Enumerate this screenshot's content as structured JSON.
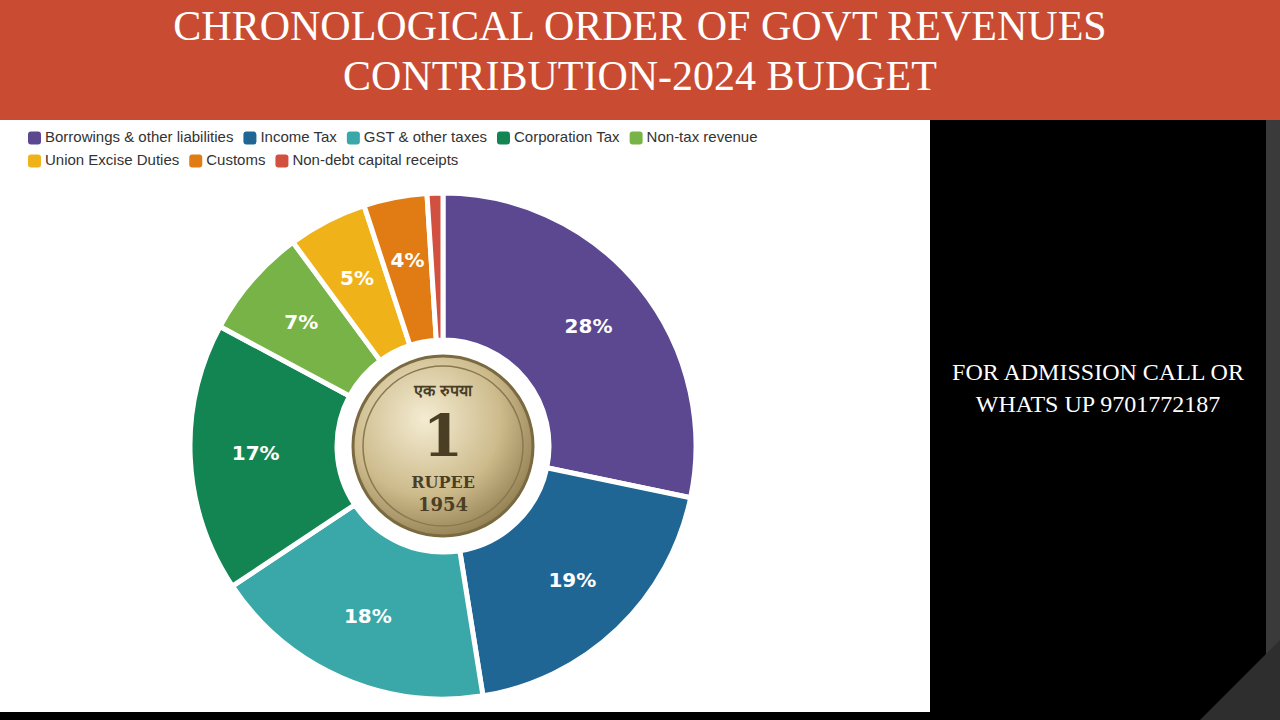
{
  "chart_data": {
    "type": "pie",
    "title": "CHRONOLOGICAL ORDER OF GOVT REVENUES CONTRIBUTION-2024 BUDGET",
    "categories": [
      "Borrowings & other liabilities",
      "Income Tax",
      "GST & other taxes",
      "Corporation Tax",
      "Non-tax revenue",
      "Union Excise Duties",
      "Customs",
      "Non-debt capital receipts"
    ],
    "values": [
      28,
      19,
      18,
      17,
      7,
      5,
      4,
      1
    ],
    "value_labels": [
      "28%",
      "19%",
      "18%",
      "17%",
      "7%",
      "5%",
      "4%",
      null
    ],
    "colors": [
      "#5b4891",
      "#1f6695",
      "#3aa8a8",
      "#138553",
      "#78b347",
      "#efb319",
      "#e07c13",
      "#d2503f"
    ],
    "data_labels": true,
    "legend": "top",
    "annotations": [
      "एक रुपया",
      "1",
      "RUPEE",
      "1954"
    ]
  },
  "side_panel": {
    "text": "FOR ADMISSION CALL OR WHATS UP 9701772187"
  }
}
